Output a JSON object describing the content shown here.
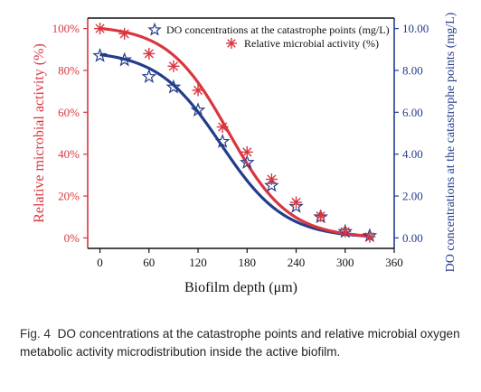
{
  "caption": {
    "label": "Fig. 4",
    "text": "DO concentrations at the catastrophe points and relative microbial oxygen metabolic activity microdistribution inside the active biofilm."
  },
  "colors": {
    "activity": "#d9363e",
    "do": "#233d8a"
  },
  "chart_data": {
    "type": "line",
    "xlabel": "Biofilm depth (μm)",
    "ylabel_left": "Relative microbial activity (%)",
    "ylabel_right": "DO concentrations at the catastrophe points (mg/L)",
    "xlim": [
      -15,
      360
    ],
    "ylim_left": [
      -5,
      105
    ],
    "ylim_right": [
      -0.5,
      10.5
    ],
    "x_ticks": [
      "0",
      "60",
      "120",
      "180",
      "240",
      "300",
      "360"
    ],
    "x_tick_values": [
      0,
      60,
      120,
      180,
      240,
      300,
      360
    ],
    "y_left_ticks": [
      "0%",
      "20%",
      "40%",
      "60%",
      "80%",
      "100%"
    ],
    "y_left_tick_values": [
      0,
      20,
      40,
      60,
      80,
      100
    ],
    "y_right_ticks": [
      "0.00",
      "2.00",
      "4.00",
      "6.00",
      "8.00",
      "10.00"
    ],
    "y_right_tick_values": [
      0,
      2,
      4,
      6,
      8,
      10
    ],
    "legend_position": "top-right",
    "legend": [
      "DO concentrations at the catastrophe points (mg/L)",
      "Relative microbial activity (%)"
    ],
    "series": [
      {
        "name": "DO concentrations at the catastrophe points (mg/L)",
        "axis": "right",
        "marker": "star-open",
        "x": [
          0,
          30,
          60,
          90,
          120,
          150,
          180,
          210,
          240,
          270,
          300,
          330
        ],
        "y": [
          8.7,
          8.5,
          7.7,
          7.2,
          6.1,
          4.6,
          3.6,
          2.5,
          1.5,
          1.0,
          0.3,
          0.1
        ]
      },
      {
        "name": "Relative microbial activity (%)",
        "axis": "left",
        "marker": "asterisk",
        "x": [
          0,
          30,
          60,
          90,
          120,
          150,
          180,
          210,
          240,
          270,
          300,
          330
        ],
        "y": [
          100,
          97.5,
          88,
          82,
          70.5,
          53,
          41,
          28,
          17,
          10.5,
          3,
          0.5
        ]
      }
    ]
  }
}
